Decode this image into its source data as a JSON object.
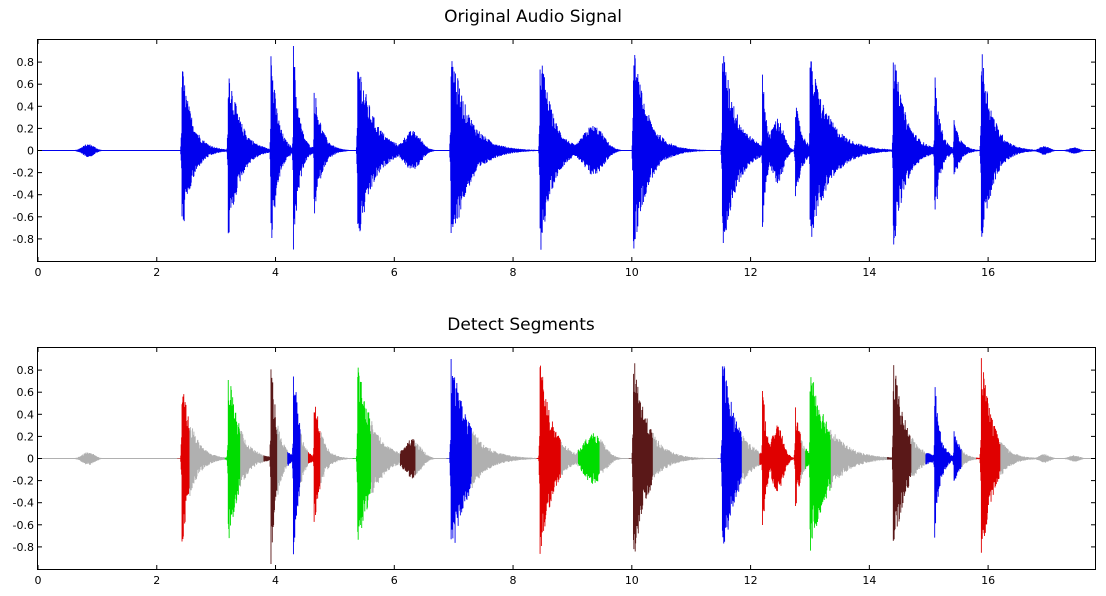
{
  "chart_data": [
    {
      "type": "line",
      "title": "Original Audio Signal",
      "xlabel": "",
      "ylabel": "",
      "xlim": [
        0,
        17.8
      ],
      "ylim": [
        -1,
        1
      ],
      "xticks": [
        0,
        2,
        4,
        6,
        8,
        10,
        12,
        14,
        16
      ],
      "yticks": [
        0.8,
        0.6,
        0.4,
        0.2,
        0,
        -0.2,
        -0.4,
        -0.6,
        -0.8
      ],
      "grid": false,
      "signal_color": "#0000ee",
      "events": [
        {
          "t": 0.85,
          "amp": 0.06,
          "dur": 0.35,
          "kind": "noise"
        },
        {
          "t": 2.42,
          "amp": 0.83,
          "dur": 0.55,
          "kind": "hit"
        },
        {
          "t": 3.2,
          "amp": 0.85,
          "dur": 0.6,
          "kind": "hit"
        },
        {
          "t": 3.92,
          "amp": 1.0,
          "dur": 0.35,
          "kind": "hit"
        },
        {
          "t": 4.3,
          "amp": 1.0,
          "dur": 0.3,
          "kind": "hit"
        },
        {
          "t": 4.65,
          "amp": 0.62,
          "dur": 0.4,
          "kind": "hit"
        },
        {
          "t": 5.38,
          "amp": 0.92,
          "dur": 0.8,
          "kind": "hit"
        },
        {
          "t": 6.3,
          "amp": 0.18,
          "dur": 0.5,
          "kind": "burst"
        },
        {
          "t": 6.95,
          "amp": 1.0,
          "dur": 0.9,
          "kind": "hit"
        },
        {
          "t": 8.45,
          "amp": 1.0,
          "dur": 0.65,
          "kind": "hit"
        },
        {
          "t": 9.35,
          "amp": 0.23,
          "dur": 0.6,
          "kind": "burst"
        },
        {
          "t": 10.02,
          "amp": 1.0,
          "dur": 0.75,
          "kind": "hit"
        },
        {
          "t": 11.52,
          "amp": 1.0,
          "dur": 0.75,
          "kind": "hit"
        },
        {
          "t": 12.2,
          "amp": 0.72,
          "dur": 0.25,
          "kind": "hit"
        },
        {
          "t": 12.45,
          "amp": 0.3,
          "dur": 0.35,
          "kind": "burst"
        },
        {
          "t": 12.75,
          "amp": 0.5,
          "dur": 0.35,
          "kind": "hit"
        },
        {
          "t": 13.0,
          "amp": 0.88,
          "dur": 1.0,
          "kind": "hit"
        },
        {
          "t": 14.4,
          "amp": 0.95,
          "dur": 0.65,
          "kind": "hit"
        },
        {
          "t": 15.1,
          "amp": 0.72,
          "dur": 0.3,
          "kind": "hit"
        },
        {
          "t": 15.42,
          "amp": 0.3,
          "dur": 0.35,
          "kind": "hit"
        },
        {
          "t": 15.88,
          "amp": 1.0,
          "dur": 0.6,
          "kind": "hit"
        },
        {
          "t": 16.95,
          "amp": 0.04,
          "dur": 0.3,
          "kind": "noise"
        },
        {
          "t": 17.45,
          "amp": 0.03,
          "dur": 0.3,
          "kind": "noise"
        }
      ]
    },
    {
      "type": "line",
      "title": "Detect Segments",
      "xlabel": "",
      "ylabel": "",
      "xlim": [
        0,
        17.8
      ],
      "ylim": [
        -1,
        1
      ],
      "xticks": [
        0,
        2,
        4,
        6,
        8,
        10,
        12,
        14,
        16
      ],
      "yticks": [
        0.8,
        0.6,
        0.4,
        0.2,
        0,
        -0.2,
        -0.4,
        -0.6,
        -0.8
      ],
      "grid": false,
      "background_signal_color": "#b0b0b0",
      "segment_colors": [
        "#e00000",
        "#00dd00",
        "#5a1818",
        "#0000ee"
      ],
      "segments": [
        {
          "start": 2.35,
          "end": 2.55,
          "color": "#e00000"
        },
        {
          "start": 3.15,
          "end": 3.4,
          "color": "#00dd00"
        },
        {
          "start": 3.8,
          "end": 4.02,
          "color": "#5a1818"
        },
        {
          "start": 4.2,
          "end": 4.42,
          "color": "#0000ee"
        },
        {
          "start": 4.55,
          "end": 4.75,
          "color": "#e00000"
        },
        {
          "start": 5.3,
          "end": 5.6,
          "color": "#00dd00"
        },
        {
          "start": 6.1,
          "end": 6.35,
          "color": "#5a1818"
        },
        {
          "start": 6.88,
          "end": 7.3,
          "color": "#0000ee"
        },
        {
          "start": 8.4,
          "end": 8.8,
          "color": "#e00000"
        },
        {
          "start": 9.1,
          "end": 9.45,
          "color": "#00dd00"
        },
        {
          "start": 9.95,
          "end": 10.35,
          "color": "#5a1818"
        },
        {
          "start": 11.45,
          "end": 11.85,
          "color": "#0000ee"
        },
        {
          "start": 12.15,
          "end": 12.85,
          "color": "#e00000"
        },
        {
          "start": 12.92,
          "end": 13.35,
          "color": "#00dd00"
        },
        {
          "start": 14.3,
          "end": 14.7,
          "color": "#5a1818"
        },
        {
          "start": 14.95,
          "end": 15.55,
          "color": "#0000ee"
        },
        {
          "start": 15.8,
          "end": 16.2,
          "color": "#e00000"
        }
      ]
    }
  ]
}
